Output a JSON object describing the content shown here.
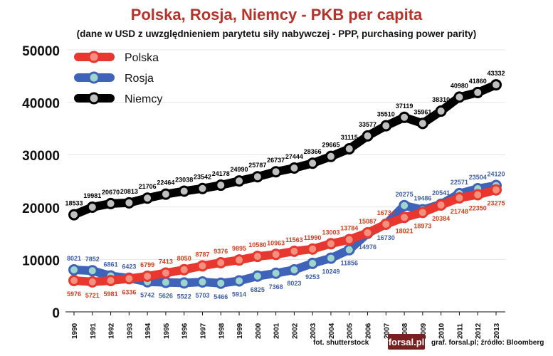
{
  "chart_data": {
    "type": "line",
    "title": "Polska, Rosja, Niemcy - PKB per capita",
    "subtitle": "(dane w USD z uwzględnieniem parytetu siły nabywczej - PPP, purchasing power parity)",
    "x": [
      "1990",
      "1991",
      "1992",
      "1993",
      "1994",
      "1995",
      "1996",
      "1997",
      "1998",
      "1999",
      "2000",
      "2001",
      "2002",
      "2003",
      "2004",
      "2005",
      "2006",
      "2007",
      "2008",
      "2009",
      "2010",
      "2011",
      "2012",
      "2013"
    ],
    "yticks": [
      "0",
      "10000",
      "20000",
      "30000",
      "40000",
      "50000"
    ],
    "ylim": [
      0,
      50000
    ],
    "grid": true,
    "legend_position": "top-left",
    "series": [
      {
        "name": "Polska",
        "color": "#e8372f",
        "marker": "#f4907e",
        "values": [
          5976,
          5721,
          5981,
          6336,
          6799,
          7413,
          8050,
          8787,
          9376,
          9895,
          10580,
          10963,
          11563,
          11990,
          13003,
          13784,
          15087,
          16734,
          18021,
          18973,
          20384,
          21748,
          22350,
          23275
        ],
        "label_color": "#d2401f"
      },
      {
        "name": "Rosja",
        "color": "#3f63b8",
        "marker": "#9fd6cc",
        "values": [
          8021,
          7852,
          6861,
          6423,
          5742,
          5626,
          5522,
          5703,
          5466,
          5914,
          6825,
          7368,
          8023,
          9253,
          10249,
          11856,
          14976,
          16730,
          20275,
          19486,
          20541,
          22571,
          23504,
          24120
        ],
        "label_color": "#3f5fa8"
      },
      {
        "name": "Niemcy",
        "color": "#000000",
        "marker": "#c0c0c0",
        "values": [
          18533,
          19981,
          20670,
          20813,
          21706,
          22464,
          23038,
          23542,
          24178,
          24990,
          25787,
          26737,
          27444,
          28366,
          29665,
          31115,
          33577,
          35510,
          37119,
          35961,
          38310,
          40980,
          41860,
          43332
        ],
        "label_color": "#000000"
      }
    ]
  },
  "footer": {
    "photo_credit": "fot. shutterstock",
    "logo": "forsal.pl",
    "source": "graf. forsal.pl; źródło: Bloomberg"
  }
}
